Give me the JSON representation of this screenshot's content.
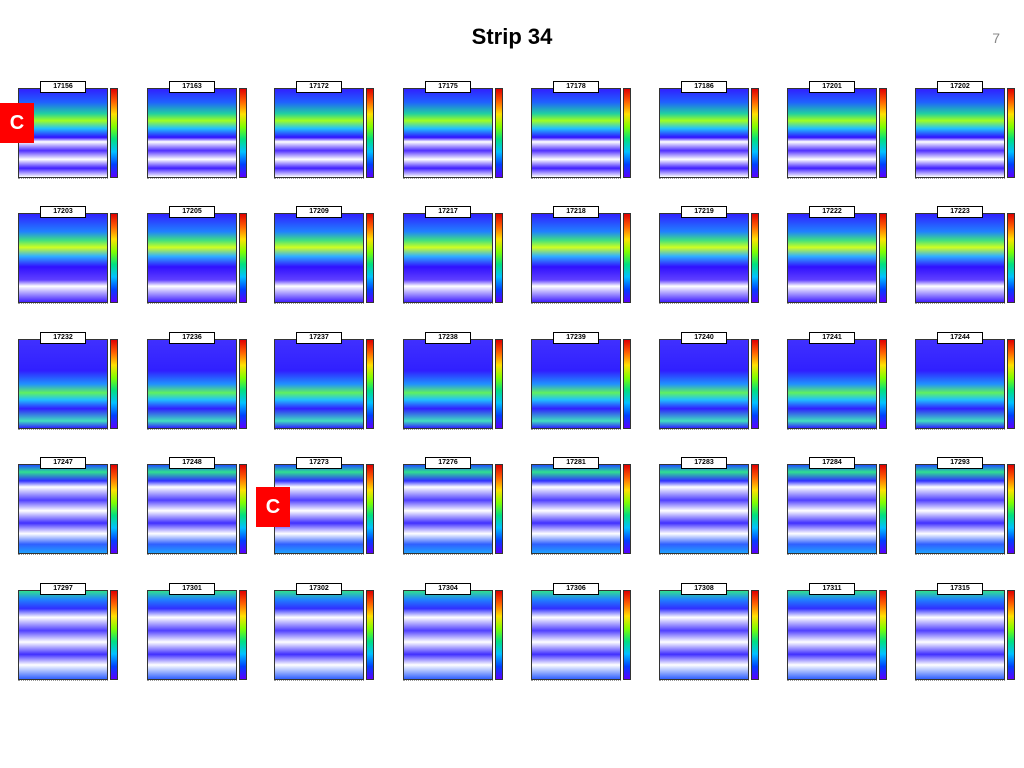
{
  "header": {
    "title": "Strip 34",
    "page_number": "7"
  },
  "panels": [
    {
      "label": "17156"
    },
    {
      "label": "17163"
    },
    {
      "label": "17172"
    },
    {
      "label": "17175"
    },
    {
      "label": "17178"
    },
    {
      "label": "17186"
    },
    {
      "label": "17201"
    },
    {
      "label": "17202"
    },
    {
      "label": "17203"
    },
    {
      "label": "17205"
    },
    {
      "label": "17209"
    },
    {
      "label": "17217"
    },
    {
      "label": "17218"
    },
    {
      "label": "17219"
    },
    {
      "label": "17222"
    },
    {
      "label": "17223"
    },
    {
      "label": "17232"
    },
    {
      "label": "17236"
    },
    {
      "label": "17237"
    },
    {
      "label": "17238"
    },
    {
      "label": "17239"
    },
    {
      "label": "17240"
    },
    {
      "label": "17241"
    },
    {
      "label": "17244"
    },
    {
      "label": "17247"
    },
    {
      "label": "17248"
    },
    {
      "label": "17273"
    },
    {
      "label": "17276"
    },
    {
      "label": "17281"
    },
    {
      "label": "17283"
    },
    {
      "label": "17284"
    },
    {
      "label": "17293"
    },
    {
      "label": "17297"
    },
    {
      "label": "17301"
    },
    {
      "label": "17302"
    },
    {
      "label": "17304"
    },
    {
      "label": "17306"
    },
    {
      "label": "17308"
    },
    {
      "label": "17311"
    },
    {
      "label": "17315"
    }
  ],
  "badges": [
    {
      "label": "C"
    },
    {
      "label": "C"
    }
  ]
}
